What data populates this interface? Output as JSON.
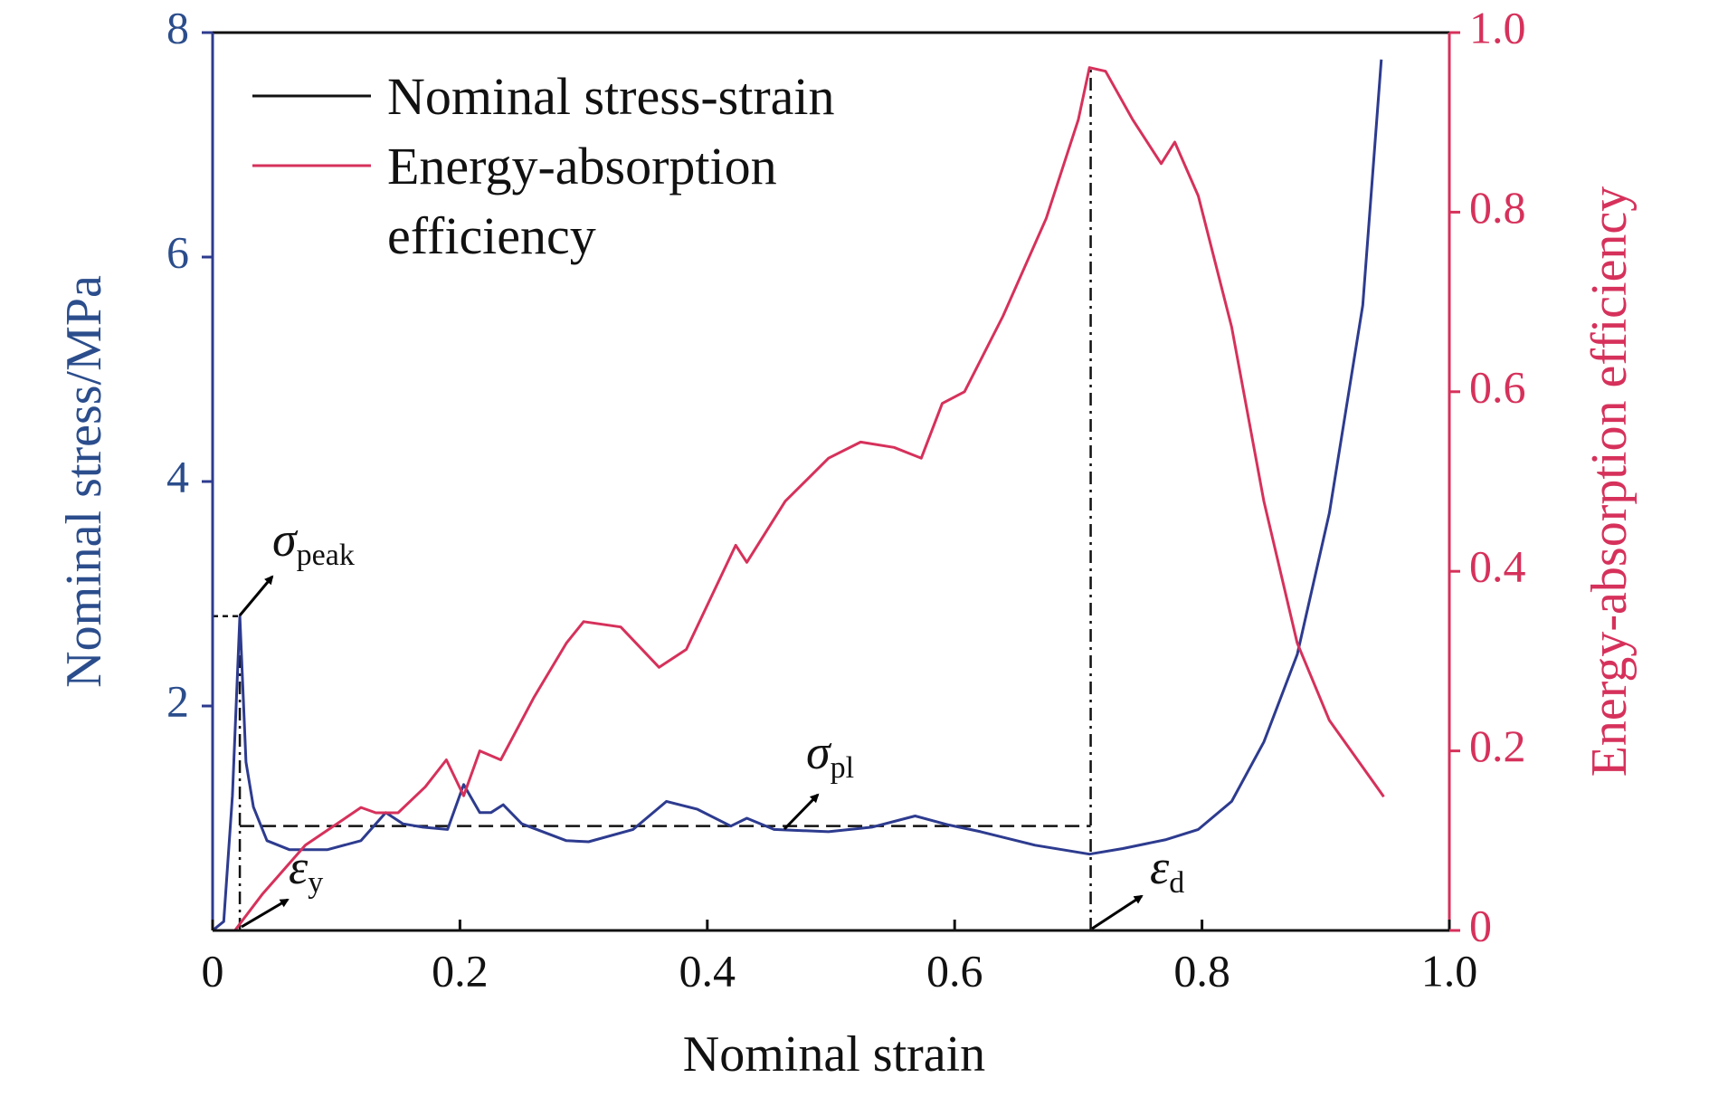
{
  "chart_data": {
    "type": "line",
    "x_label": "Nominal strain",
    "y_label": "Nominal stress/MPa",
    "y2_label": "Energy-absorption efficiency",
    "xlim": [
      0,
      1
    ],
    "xticks": [
      0,
      0.2,
      0.4,
      0.6,
      0.8,
      {
        "value": 1,
        "label": "1.0"
      }
    ],
    "ylim": [
      0,
      8
    ],
    "yticks": [
      2,
      4,
      6,
      8
    ],
    "y2lim": [
      0,
      1
    ],
    "y2ticks": [
      0,
      0.2,
      0.4,
      0.6,
      0.8,
      {
        "value": 1,
        "label": "1.0"
      }
    ],
    "legend": "upper left",
    "series": [
      {
        "name": "Nominal stress-strain",
        "color": "#2d3b8f",
        "legend_color": "#111111",
        "x": [
          0,
          0.009,
          0.016,
          0.022,
          0.027,
          0.033,
          0.044,
          0.062,
          0.093,
          0.12,
          0.14,
          0.154,
          0.17,
          0.19,
          0.203,
          0.216,
          0.225,
          0.235,
          0.25,
          0.286,
          0.304,
          0.34,
          0.367,
          0.392,
          0.419,
          0.432,
          0.454,
          0.498,
          0.533,
          0.568,
          0.595,
          0.621,
          0.665,
          0.709,
          0.736,
          0.771,
          0.797,
          0.824,
          0.85,
          0.877,
          0.903,
          0.93,
          0.945
        ],
        "values": [
          0,
          0.08,
          1.2,
          2.8,
          1.5,
          1.1,
          0.8,
          0.72,
          0.72,
          0.8,
          1.05,
          0.95,
          0.92,
          0.9,
          1.3,
          1.05,
          1.05,
          1.12,
          0.95,
          0.8,
          0.79,
          0.9,
          1.15,
          1.08,
          0.93,
          1.0,
          0.9,
          0.88,
          0.92,
          1.02,
          0.94,
          0.88,
          0.76,
          0.68,
          0.73,
          0.81,
          0.9,
          1.15,
          1.68,
          2.46,
          3.72,
          5.57,
          7.76
        ]
      },
      {
        "name": "Energy-absorption efficiency",
        "color": "#d6315b",
        "axis": "y2",
        "x": [
          0.018,
          0.04,
          0.075,
          0.12,
          0.132,
          0.15,
          0.172,
          0.189,
          0.203,
          0.216,
          0.233,
          0.26,
          0.286,
          0.3,
          0.33,
          0.361,
          0.383,
          0.423,
          0.432,
          0.463,
          0.498,
          0.524,
          0.551,
          0.573,
          0.59,
          0.608,
          0.639,
          0.674,
          0.7,
          0.709,
          0.722,
          0.744,
          0.767,
          0.778,
          0.797,
          0.824,
          0.85,
          0.877,
          0.903,
          0.947
        ],
        "values": [
          0,
          0.04,
          0.095,
          0.137,
          0.131,
          0.131,
          0.16,
          0.19,
          0.15,
          0.2,
          0.19,
          0.26,
          0.32,
          0.344,
          0.338,
          0.293,
          0.313,
          0.429,
          0.41,
          0.478,
          0.526,
          0.544,
          0.538,
          0.526,
          0.587,
          0.6,
          0.684,
          0.793,
          0.903,
          0.961,
          0.957,
          0.903,
          0.854,
          0.878,
          0.818,
          0.672,
          0.478,
          0.32,
          0.234,
          0.149
        ]
      }
    ],
    "reference_lines": {
      "peak_strain": 0.022,
      "peak_stress": 2.8,
      "plateau_stress": 0.93,
      "densification_strain": 0.71
    },
    "annotations": [
      {
        "symbol": "σ",
        "subscript": "peak"
      },
      {
        "symbol": "σ",
        "subscript": "pl"
      },
      {
        "symbol": "ε",
        "subscript": "y"
      },
      {
        "symbol": "ε",
        "subscript": "d"
      }
    ]
  }
}
